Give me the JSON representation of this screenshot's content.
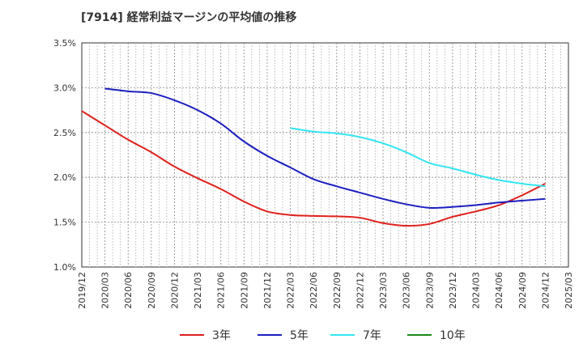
{
  "chart_data": {
    "type": "line",
    "title": "[7914]  経常利益マージンの平均値の推移",
    "xlabel": "",
    "ylabel": "",
    "ylim": [
      1.0,
      3.5
    ],
    "y_ticks": [
      "1.0%",
      "1.5%",
      "2.0%",
      "2.5%",
      "3.0%",
      "3.5%"
    ],
    "y_tick_values": [
      1.0,
      1.5,
      2.0,
      2.5,
      3.0,
      3.5
    ],
    "x_ticks": [
      "2019/12",
      "2020/03",
      "2020/06",
      "2020/09",
      "2020/12",
      "2021/03",
      "2021/06",
      "2021/09",
      "2021/12",
      "2022/03",
      "2022/06",
      "2022/09",
      "2022/12",
      "2023/03",
      "2023/06",
      "2023/09",
      "2023/12",
      "2024/03",
      "2024/06",
      "2024/09",
      "2024/12",
      "2025/03"
    ],
    "grid": true,
    "legend_position": "bottom",
    "series": [
      {
        "name": "3年",
        "color": "#e0201b",
        "x": [
          "2019/12",
          "2020/03",
          "2020/06",
          "2020/09",
          "2020/12",
          "2021/03",
          "2021/06",
          "2021/09",
          "2021/12",
          "2022/03",
          "2022/06",
          "2022/09",
          "2022/12",
          "2023/03",
          "2023/06",
          "2023/09",
          "2023/12",
          "2024/03",
          "2024/06",
          "2024/09",
          "2024/12"
        ],
        "values": [
          2.74,
          2.58,
          2.42,
          2.28,
          2.12,
          1.99,
          1.87,
          1.73,
          1.62,
          1.58,
          1.57,
          1.565,
          1.55,
          1.49,
          1.46,
          1.48,
          1.56,
          1.62,
          1.69,
          1.8,
          1.93
        ]
      },
      {
        "name": "5年",
        "color": "#1b1fbf",
        "x": [
          "2020/03",
          "2020/06",
          "2020/09",
          "2020/12",
          "2021/03",
          "2021/06",
          "2021/09",
          "2021/12",
          "2022/03",
          "2022/06",
          "2022/09",
          "2022/12",
          "2023/03",
          "2023/06",
          "2023/09",
          "2023/12",
          "2024/03",
          "2024/06",
          "2024/09",
          "2024/12"
        ],
        "values": [
          2.99,
          2.96,
          2.94,
          2.86,
          2.75,
          2.6,
          2.4,
          2.24,
          2.11,
          1.98,
          1.9,
          1.83,
          1.76,
          1.7,
          1.66,
          1.67,
          1.69,
          1.72,
          1.74,
          1.76
        ]
      },
      {
        "name": "7年",
        "color": "#33e5f2",
        "x": [
          "2022/03",
          "2022/06",
          "2022/09",
          "2022/12",
          "2023/03",
          "2023/06",
          "2023/09",
          "2023/12",
          "2024/03",
          "2024/06",
          "2024/09",
          "2024/12"
        ],
        "values": [
          2.55,
          2.51,
          2.49,
          2.45,
          2.38,
          2.28,
          2.16,
          2.1,
          2.03,
          1.97,
          1.93,
          1.9
        ]
      },
      {
        "name": "10年",
        "color": "#1a8a1a",
        "x": [],
        "values": []
      }
    ]
  }
}
